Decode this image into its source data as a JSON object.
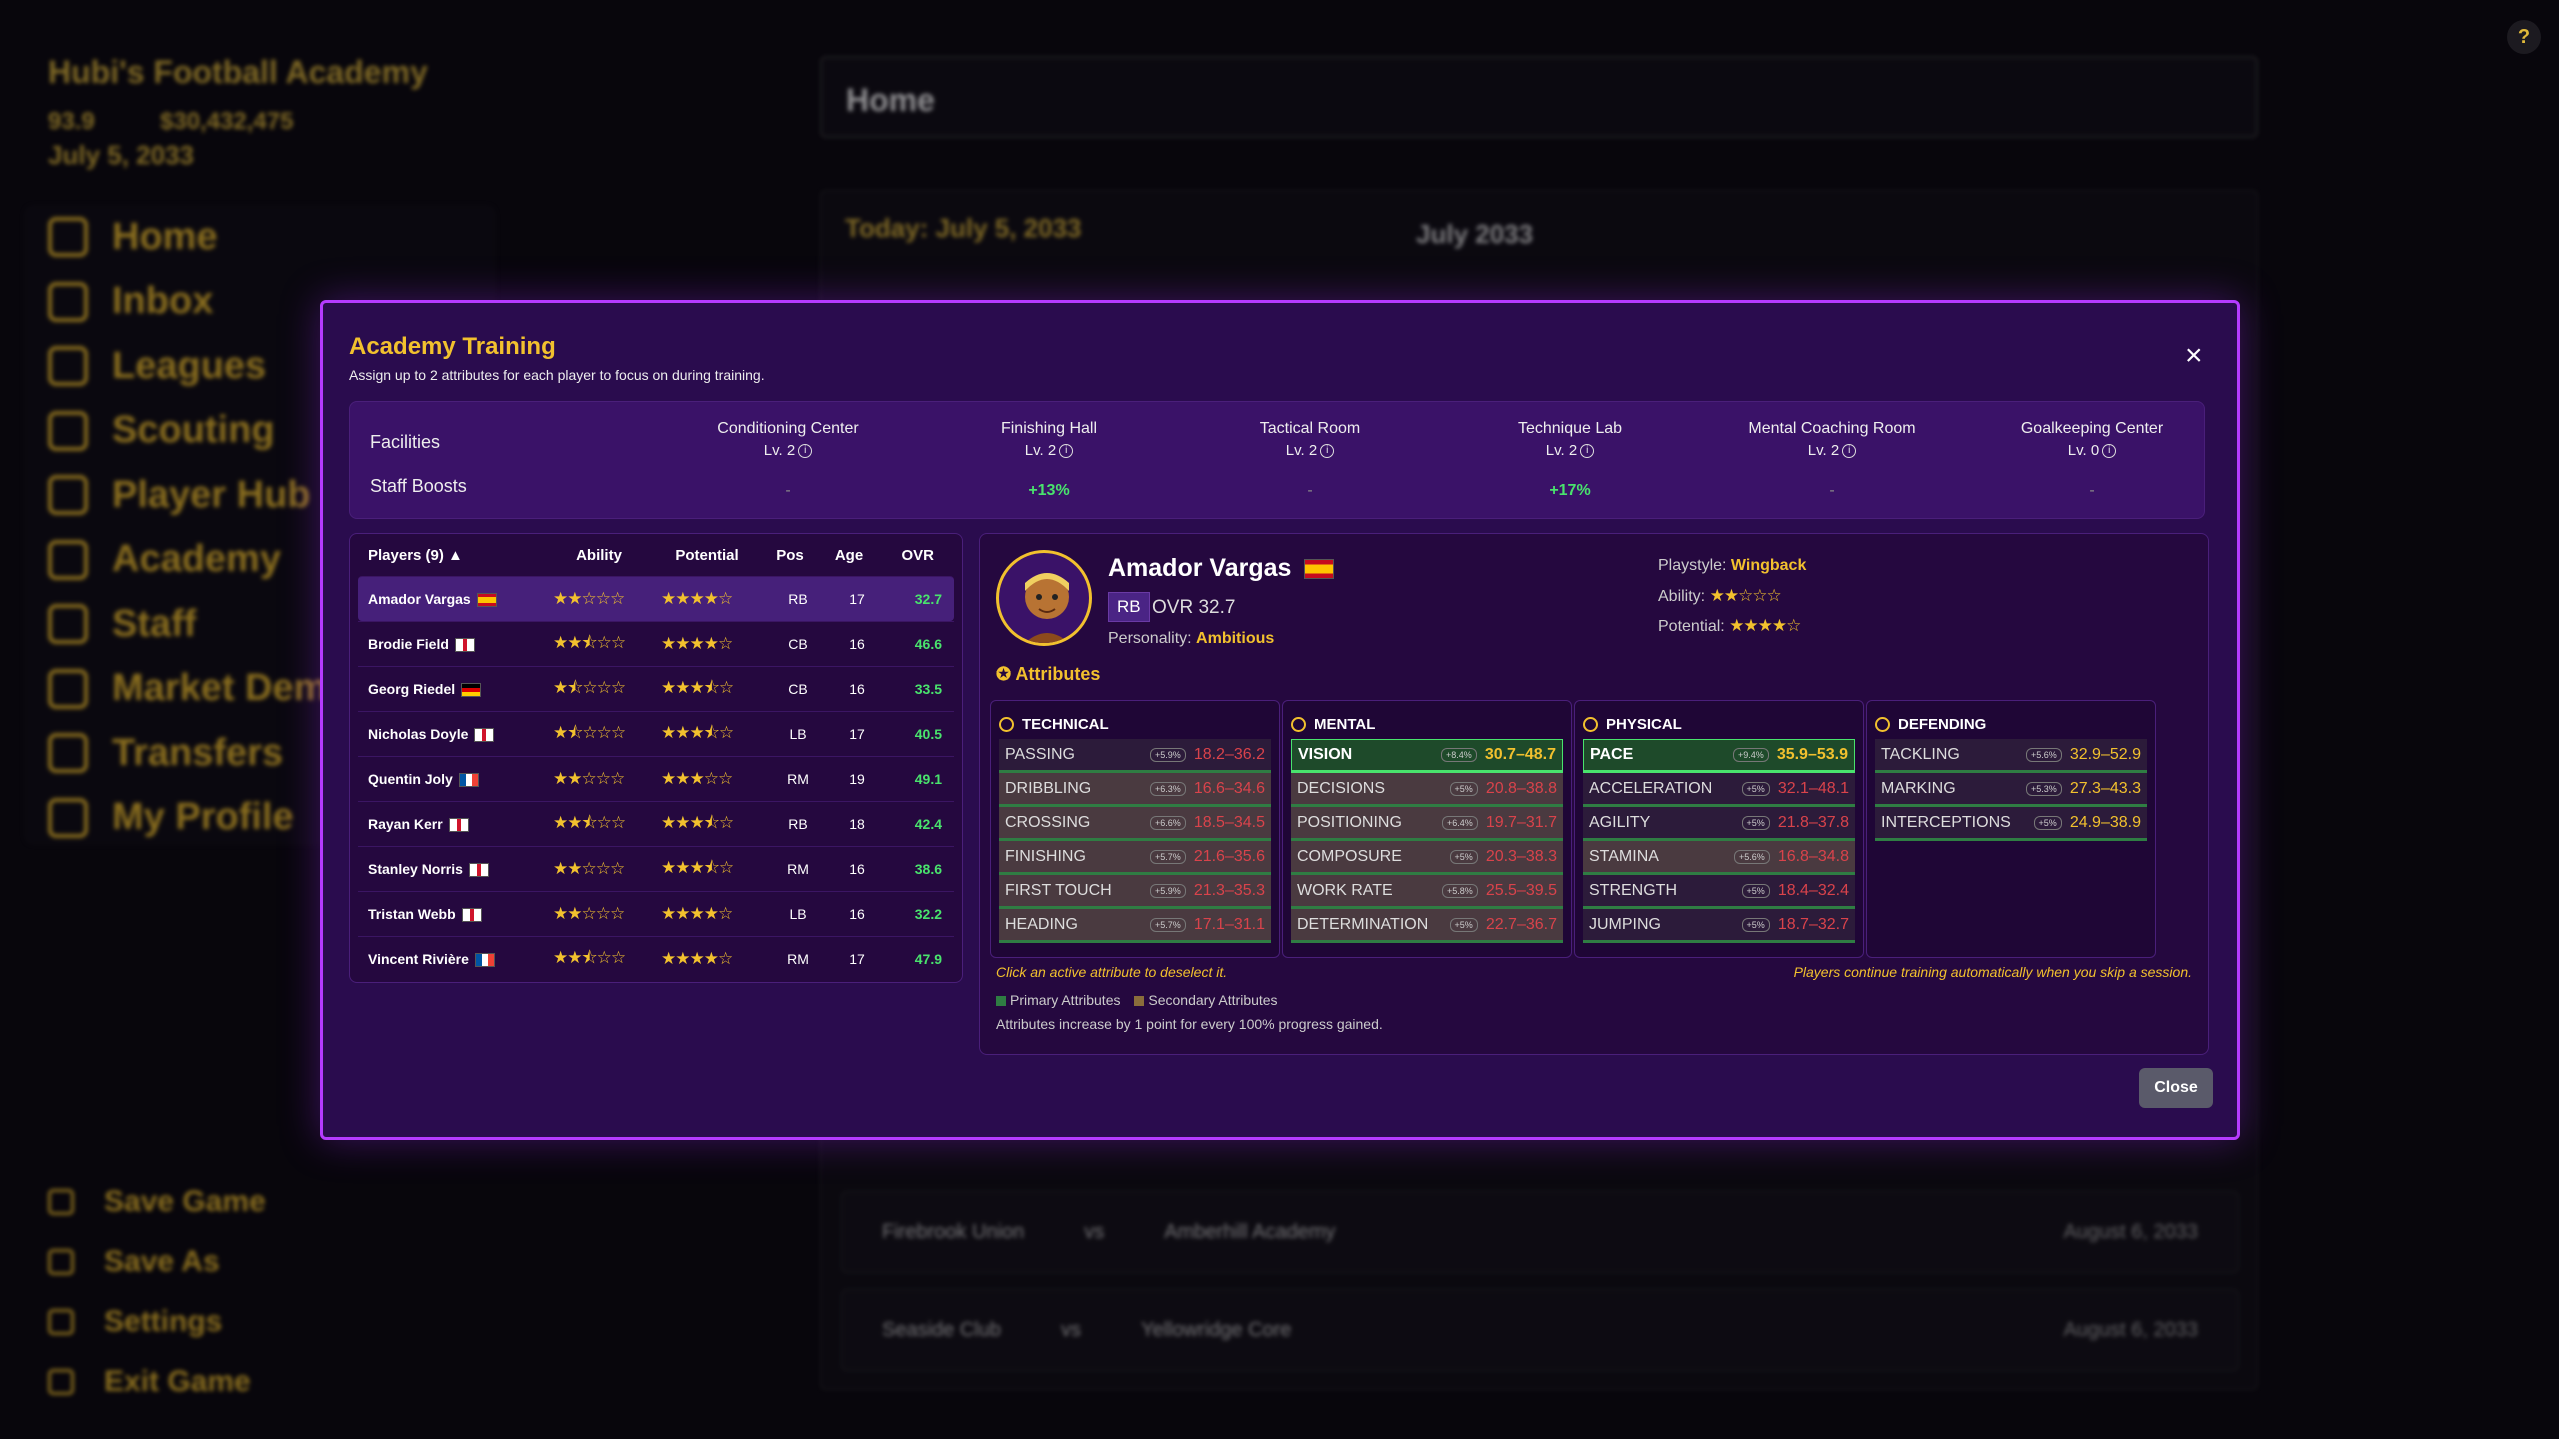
{
  "background": {
    "club_name": "Hubi's Football Academy",
    "rating": "93.9",
    "money": "$30,432,475",
    "date": "July 5, 2033",
    "nav": [
      "Home",
      "Inbox",
      "Leagues",
      "Scouting",
      "Player Hub",
      "Academy",
      "Staff",
      "Market Dem",
      "Transfers",
      "My Profile"
    ],
    "nav_bottom": [
      "Save Game",
      "Save As",
      "Settings",
      "Exit Game"
    ],
    "page_title": "Home",
    "today": "Today: July 5, 2033",
    "month": "July 2033",
    "fixtures": [
      {
        "home": "Firebrook Union",
        "away": "Amberhill Academy",
        "date": "August 6, 2033"
      },
      {
        "home": "Seaside Club",
        "away": "Yellowridge Core",
        "date": "August 6, 2033"
      }
    ],
    "vs": "vs"
  },
  "modal": {
    "title": "Academy Training",
    "subtitle": "Assign up to 2 attributes for each player to focus on during training.",
    "close_icon": "×",
    "facilities_label": "Facilities",
    "staff_label": "Staff Boosts",
    "facilities": [
      {
        "name": "Conditioning Center",
        "level": "Lv. 2",
        "boost": "-"
      },
      {
        "name": "Finishing Hall",
        "level": "Lv. 2",
        "boost": "+13%"
      },
      {
        "name": "Tactical Room",
        "level": "Lv. 2",
        "boost": "-"
      },
      {
        "name": "Technique Lab",
        "level": "Lv. 2",
        "boost": "+17%"
      },
      {
        "name": "Mental Coaching Room",
        "level": "Lv. 2",
        "boost": "-"
      },
      {
        "name": "Goalkeeping Center",
        "level": "Lv. 0",
        "boost": "-"
      }
    ],
    "players_header": {
      "players": "Players (9) ▲",
      "ability": "Ability",
      "potential": "Potential",
      "pos": "Pos",
      "age": "Age",
      "ovr": "OVR"
    },
    "players": [
      {
        "name": "Amador Vargas",
        "ability": "★★☆☆☆",
        "potential": "★★★★☆",
        "pos": "RB",
        "age": "17",
        "ovr": "32.7"
      },
      {
        "name": "Brodie Field",
        "ability": "★★⯪☆☆",
        "potential": "★★★★☆",
        "pos": "CB",
        "age": "16",
        "ovr": "46.6"
      },
      {
        "name": "Georg Riedel",
        "ability": "★⯪☆☆☆",
        "potential": "★★★⯪☆",
        "pos": "CB",
        "age": "16",
        "ovr": "33.5"
      },
      {
        "name": "Nicholas Doyle",
        "ability": "★⯪☆☆☆",
        "potential": "★★★⯪☆",
        "pos": "LB",
        "age": "17",
        "ovr": "40.5"
      },
      {
        "name": "Quentin Joly",
        "ability": "★★☆☆☆",
        "potential": "★★★☆☆",
        "pos": "RM",
        "age": "19",
        "ovr": "49.1"
      },
      {
        "name": "Rayan Kerr",
        "ability": "★★⯪☆☆",
        "potential": "★★★⯪☆",
        "pos": "RB",
        "age": "18",
        "ovr": "42.4"
      },
      {
        "name": "Stanley Norris",
        "ability": "★★☆☆☆",
        "potential": "★★★⯪☆",
        "pos": "RM",
        "age": "16",
        "ovr": "38.6"
      },
      {
        "name": "Tristan Webb",
        "ability": "★★☆☆☆",
        "potential": "★★★★☆",
        "pos": "LB",
        "age": "16",
        "ovr": "32.2"
      },
      {
        "name": "Vincent Rivière",
        "ability": "★★⯪☆☆",
        "potential": "★★★★☆",
        "pos": "RM",
        "age": "17",
        "ovr": "47.9"
      }
    ],
    "selected": {
      "name": "Amador Vargas",
      "pos": "RB",
      "ovr": "OVR 32.7",
      "personality_label": "Personality:",
      "personality": "Ambitious",
      "playstyle_label": "Playstyle:",
      "playstyle": "Wingback",
      "ability_label": "Ability:",
      "ability": "★★☆☆☆",
      "potential_label": "Potential:",
      "potential": "★★★★☆"
    },
    "attributes_title": "Attributes",
    "groups": [
      {
        "title": "TECHNICAL",
        "items": [
          {
            "name": "PASSING",
            "boost": "+5.9%",
            "range": "18.2–36.2"
          },
          {
            "name": "DRIBBLING",
            "boost": "+6.3%",
            "range": "16.6–34.6"
          },
          {
            "name": "CROSSING",
            "boost": "+6.6%",
            "range": "18.5–34.5"
          },
          {
            "name": "FINISHING",
            "boost": "+5.7%",
            "range": "21.6–35.6"
          },
          {
            "name": "FIRST TOUCH",
            "boost": "+5.9%",
            "range": "21.3–35.3"
          },
          {
            "name": "HEADING",
            "boost": "+5.7%",
            "range": "17.1–31.1"
          }
        ]
      },
      {
        "title": "MENTAL",
        "items": [
          {
            "name": "VISION",
            "boost": "+8.4%",
            "range": "30.7–48.7"
          },
          {
            "name": "DECISIONS",
            "boost": "+5%",
            "range": "20.8–38.8"
          },
          {
            "name": "POSITIONING",
            "boost": "+6.4%",
            "range": "19.7–31.7"
          },
          {
            "name": "COMPOSURE",
            "boost": "+5%",
            "range": "20.3–38.3"
          },
          {
            "name": "WORK RATE",
            "boost": "+5.8%",
            "range": "25.5–39.5"
          },
          {
            "name": "DETERMINATION",
            "boost": "+5%",
            "range": "22.7–36.7"
          }
        ]
      },
      {
        "title": "PHYSICAL",
        "items": [
          {
            "name": "PACE",
            "boost": "+9.4%",
            "range": "35.9–53.9"
          },
          {
            "name": "ACCELERATION",
            "boost": "+5%",
            "range": "32.1–48.1"
          },
          {
            "name": "AGILITY",
            "boost": "+5%",
            "range": "21.8–37.8"
          },
          {
            "name": "STAMINA",
            "boost": "+5.6%",
            "range": "16.8–34.8"
          },
          {
            "name": "STRENGTH",
            "boost": "+5%",
            "range": "18.4–32.4"
          },
          {
            "name": "JUMPING",
            "boost": "+5%",
            "range": "18.7–32.7"
          }
        ]
      },
      {
        "title": "DEFENDING",
        "items": [
          {
            "name": "TACKLING",
            "boost": "+5.6%",
            "range": "32.9–52.9"
          },
          {
            "name": "MARKING",
            "boost": "+5.3%",
            "range": "27.3–43.3"
          },
          {
            "name": "INTERCEPTIONS",
            "boost": "+5%",
            "range": "24.9–38.9"
          }
        ]
      }
    ],
    "note_left": "Click an active attribute to deselect it.",
    "note_right": "Players continue training automatically when you skip a session.",
    "legend_primary": "Primary Attributes",
    "legend_secondary": "Secondary Attributes",
    "legend_info": "Attributes increase by 1 point for every 100% progress gained.",
    "close_label": "Close",
    "colors": {
      "accent": "#f2c12e",
      "border": "#b53bff",
      "positive": "#49e36d",
      "negative": "#d9434b"
    }
  }
}
